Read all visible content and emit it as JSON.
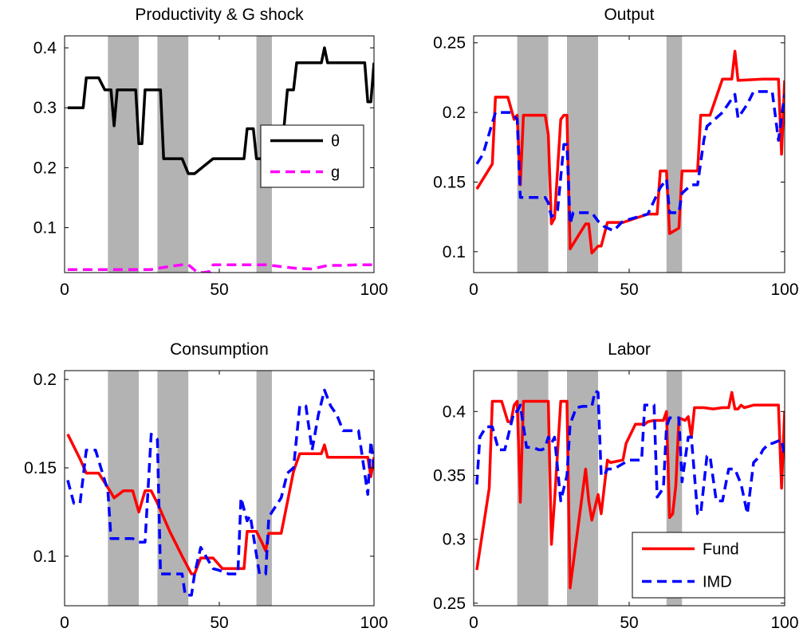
{
  "chart_data": [
    {
      "type": "line",
      "title": "Productivity & G shock",
      "xlim": [
        0,
        100
      ],
      "ylim": [
        0.025,
        0.42
      ],
      "xticks": [
        0,
        50,
        100
      ],
      "yticks": [
        0.1,
        0.2,
        0.3,
        0.4
      ],
      "ytick_labels": [
        "0.1",
        "0.2",
        "0.3",
        "0.4"
      ],
      "shaded_regions": [
        [
          14,
          24
        ],
        [
          30,
          40
        ],
        [
          62,
          67
        ]
      ],
      "legend": {
        "position": "right",
        "entries": [
          "θ",
          "g"
        ]
      },
      "series": [
        {
          "name": "θ",
          "color": "#000000",
          "style": "solid",
          "x": [
            1,
            5,
            6,
            7,
            10,
            11,
            13,
            14,
            15,
            16,
            17,
            22,
            23,
            24,
            25,
            26,
            28,
            29,
            30,
            31,
            32,
            36,
            37,
            38,
            40,
            41,
            42,
            48,
            56,
            58,
            59,
            60,
            61,
            62,
            63,
            66,
            67,
            68,
            69,
            70,
            72,
            73,
            74,
            75,
            76,
            80,
            82,
            83,
            84,
            85,
            93,
            96,
            97,
            98,
            99,
            100
          ],
          "y": [
            0.3,
            0.3,
            0.3,
            0.35,
            0.35,
            0.35,
            0.33,
            0.33,
            0.33,
            0.27,
            0.33,
            0.33,
            0.33,
            0.24,
            0.24,
            0.33,
            0.33,
            0.33,
            0.33,
            0.33,
            0.215,
            0.215,
            0.215,
            0.215,
            0.19,
            0.19,
            0.19,
            0.215,
            0.215,
            0.215,
            0.265,
            0.265,
            0.265,
            0.215,
            0.215,
            0.215,
            0.215,
            0.215,
            0.215,
            0.215,
            0.33,
            0.33,
            0.33,
            0.375,
            0.375,
            0.375,
            0.375,
            0.375,
            0.4,
            0.375,
            0.375,
            0.375,
            0.375,
            0.31,
            0.31,
            0.375
          ]
        },
        {
          "name": "g",
          "color": "#ff00ff",
          "style": "dashed",
          "x": [
            1,
            10,
            20,
            28,
            30,
            35,
            38,
            40,
            43,
            45,
            47,
            48,
            55,
            65,
            70,
            75,
            80,
            85,
            90,
            95,
            100
          ],
          "y": [
            0.03,
            0.03,
            0.03,
            0.03,
            0.032,
            0.036,
            0.038,
            0.038,
            0.025,
            0.025,
            0.027,
            0.038,
            0.038,
            0.038,
            0.035,
            0.032,
            0.031,
            0.037,
            0.037,
            0.038,
            0.038
          ]
        }
      ]
    },
    {
      "type": "line",
      "title": "Output",
      "xlim": [
        0,
        100
      ],
      "ylim": [
        0.085,
        0.255
      ],
      "xticks": [
        0,
        50,
        100
      ],
      "yticks": [
        0.1,
        0.15,
        0.2,
        0.25
      ],
      "ytick_labels": [
        "0.1",
        "0.15",
        "0.2",
        "0.25"
      ],
      "shaded_regions": [
        [
          14,
          24
        ],
        [
          30,
          40
        ],
        [
          62,
          67
        ]
      ],
      "series": [
        {
          "name": "Fund",
          "color": "#ff0000",
          "style": "solid",
          "x": [
            1,
            6,
            7,
            11,
            13,
            14,
            15,
            16,
            22,
            23,
            24,
            25,
            26,
            28,
            29,
            30,
            31,
            36,
            37,
            38,
            40,
            41,
            43,
            48,
            56,
            59,
            60,
            61,
            62,
            63,
            66,
            67,
            68,
            69,
            70,
            72,
            73,
            74,
            75,
            76,
            80,
            82,
            83,
            84,
            85,
            93,
            96,
            97,
            98,
            99,
            100
          ],
          "y": [
            0.145,
            0.163,
            0.211,
            0.211,
            0.195,
            0.198,
            0.148,
            0.198,
            0.198,
            0.198,
            0.184,
            0.12,
            0.124,
            0.195,
            0.198,
            0.198,
            0.102,
            0.12,
            0.12,
            0.099,
            0.104,
            0.104,
            0.121,
            0.121,
            0.127,
            0.127,
            0.158,
            0.158,
            0.158,
            0.113,
            0.117,
            0.158,
            0.158,
            0.158,
            0.158,
            0.158,
            0.198,
            0.198,
            0.198,
            0.198,
            0.224,
            0.224,
            0.224,
            0.244,
            0.223,
            0.224,
            0.224,
            0.224,
            0.224,
            0.17,
            0.223
          ]
        },
        {
          "name": "IMD",
          "color": "#0000ff",
          "style": "dashed",
          "x": [
            1,
            3,
            7,
            12,
            14,
            15,
            22,
            23,
            24,
            25,
            27,
            29,
            30,
            31,
            32,
            38,
            40,
            42,
            45,
            48,
            56,
            60,
            62,
            63,
            66,
            67,
            70,
            72,
            74,
            75,
            80,
            84,
            85,
            88,
            90,
            96,
            98,
            100
          ],
          "y": [
            0.163,
            0.17,
            0.2,
            0.2,
            0.195,
            0.139,
            0.139,
            0.139,
            0.135,
            0.125,
            0.13,
            0.177,
            0.177,
            0.12,
            0.128,
            0.128,
            0.122,
            0.118,
            0.115,
            0.122,
            0.127,
            0.146,
            0.152,
            0.128,
            0.128,
            0.142,
            0.148,
            0.148,
            0.18,
            0.19,
            0.2,
            0.213,
            0.196,
            0.206,
            0.215,
            0.215,
            0.18,
            0.213
          ]
        }
      ]
    },
    {
      "type": "line",
      "title": "Consumption",
      "xlim": [
        0,
        100
      ],
      "ylim": [
        0.072,
        0.205
      ],
      "xticks": [
        0,
        50,
        100
      ],
      "yticks": [
        0.1,
        0.15,
        0.2
      ],
      "ytick_labels": [
        "0.1",
        "0.15",
        "0.2"
      ],
      "shaded_regions": [
        [
          14,
          24
        ],
        [
          30,
          40
        ],
        [
          62,
          67
        ]
      ],
      "series": [
        {
          "name": "Fund",
          "color": "#ff0000",
          "style": "solid",
          "x": [
            1,
            5,
            7,
            11,
            15,
            16,
            19,
            22,
            24,
            26,
            28,
            30,
            34,
            38,
            41,
            42,
            44,
            48,
            51,
            55,
            58,
            59,
            62,
            64,
            65,
            66,
            68,
            70,
            74,
            76,
            83,
            84,
            85,
            90,
            98,
            99,
            100
          ],
          "y": [
            0.169,
            0.155,
            0.147,
            0.147,
            0.136,
            0.133,
            0.137,
            0.137,
            0.125,
            0.137,
            0.137,
            0.13,
            0.114,
            0.1,
            0.09,
            0.09,
            0.099,
            0.099,
            0.093,
            0.093,
            0.093,
            0.114,
            0.114,
            0.107,
            0.103,
            0.113,
            0.113,
            0.113,
            0.148,
            0.158,
            0.158,
            0.163,
            0.156,
            0.156,
            0.156,
            0.145,
            0.156
          ]
        },
        {
          "name": "IMD",
          "color": "#0000ff",
          "style": "dashed",
          "x": [
            1,
            3,
            5,
            7,
            10,
            14,
            15,
            17,
            22,
            24,
            26,
            28,
            30,
            31,
            33,
            38,
            39,
            41,
            42,
            44,
            48,
            50,
            53,
            56,
            57,
            59,
            60,
            63,
            64,
            65,
            66,
            67,
            70,
            72,
            74,
            76,
            78,
            80,
            82,
            84,
            86,
            88,
            90,
            92,
            95,
            98,
            99,
            100
          ],
          "y": [
            0.143,
            0.13,
            0.13,
            0.16,
            0.16,
            0.137,
            0.11,
            0.11,
            0.11,
            0.108,
            0.108,
            0.169,
            0.166,
            0.09,
            0.09,
            0.09,
            0.078,
            0.078,
            0.09,
            0.105,
            0.093,
            0.092,
            0.09,
            0.09,
            0.133,
            0.12,
            0.123,
            0.09,
            0.09,
            0.09,
            0.122,
            0.125,
            0.133,
            0.147,
            0.15,
            0.185,
            0.185,
            0.16,
            0.18,
            0.194,
            0.185,
            0.18,
            0.171,
            0.171,
            0.171,
            0.135,
            0.165,
            0.15
          ]
        }
      ]
    },
    {
      "type": "line",
      "title": "Labor",
      "xlim": [
        0,
        100
      ],
      "ylim": [
        0.248,
        0.432
      ],
      "xticks": [
        0,
        50,
        100
      ],
      "yticks": [
        0.25,
        0.3,
        0.35,
        0.4
      ],
      "ytick_labels": [
        "0.25",
        "0.3",
        "0.35",
        "0.4"
      ],
      "shaded_regions": [
        [
          14,
          24
        ],
        [
          30,
          40
        ],
        [
          62,
          67
        ]
      ],
      "legend": {
        "position": "bottom-right",
        "entries": [
          "Fund",
          "IMD"
        ]
      },
      "series": [
        {
          "name": "Fund",
          "color": "#ff0000",
          "style": "solid",
          "x": [
            1,
            5,
            6,
            9,
            11,
            12,
            13,
            14,
            15,
            16,
            21,
            23,
            24,
            25,
            26,
            28,
            30,
            31,
            36,
            37,
            38,
            40,
            41,
            43,
            44,
            48,
            49,
            52,
            53,
            55,
            56,
            58,
            61,
            62,
            63,
            64,
            65,
            66,
            68,
            69,
            70,
            71,
            74,
            77,
            80,
            82,
            83,
            84,
            85,
            86,
            87,
            90,
            98,
            99,
            100
          ],
          "y": [
            0.276,
            0.34,
            0.408,
            0.408,
            0.392,
            0.392,
            0.405,
            0.408,
            0.329,
            0.408,
            0.408,
            0.408,
            0.408,
            0.296,
            0.33,
            0.408,
            0.408,
            0.262,
            0.355,
            0.33,
            0.315,
            0.335,
            0.32,
            0.362,
            0.36,
            0.362,
            0.375,
            0.39,
            0.39,
            0.39,
            0.392,
            0.393,
            0.393,
            0.4,
            0.317,
            0.32,
            0.342,
            0.395,
            0.393,
            0.396,
            0.38,
            0.403,
            0.403,
            0.402,
            0.403,
            0.403,
            0.415,
            0.402,
            0.402,
            0.405,
            0.403,
            0.405,
            0.405,
            0.34,
            0.4
          ]
        },
        {
          "name": "IMD",
          "color": "#0000ff",
          "style": "dashed",
          "x": [
            1,
            2,
            4,
            6,
            8,
            9,
            10,
            13,
            14,
            15,
            17,
            19,
            21,
            22,
            23,
            24,
            25,
            26,
            28,
            30,
            31,
            33,
            35,
            38,
            39,
            40,
            41,
            42,
            43,
            45,
            50,
            54,
            55,
            56,
            58,
            59,
            61,
            62,
            63,
            66,
            67,
            69,
            70,
            72,
            73,
            75,
            76,
            78,
            80,
            82,
            84,
            86,
            88,
            90,
            92,
            93,
            95,
            96,
            99,
            100
          ],
          "y": [
            0.343,
            0.38,
            0.388,
            0.388,
            0.37,
            0.37,
            0.37,
            0.4,
            0.4,
            0.405,
            0.372,
            0.372,
            0.37,
            0.37,
            0.372,
            0.38,
            0.375,
            0.38,
            0.33,
            0.35,
            0.39,
            0.403,
            0.404,
            0.404,
            0.416,
            0.415,
            0.35,
            0.35,
            0.355,
            0.355,
            0.362,
            0.362,
            0.405,
            0.405,
            0.405,
            0.333,
            0.34,
            0.388,
            0.395,
            0.395,
            0.345,
            0.38,
            0.38,
            0.32,
            0.32,
            0.365,
            0.365,
            0.33,
            0.33,
            0.355,
            0.355,
            0.343,
            0.32,
            0.36,
            0.365,
            0.37,
            0.375,
            0.375,
            0.378,
            0.365
          ]
        }
      ]
    }
  ]
}
